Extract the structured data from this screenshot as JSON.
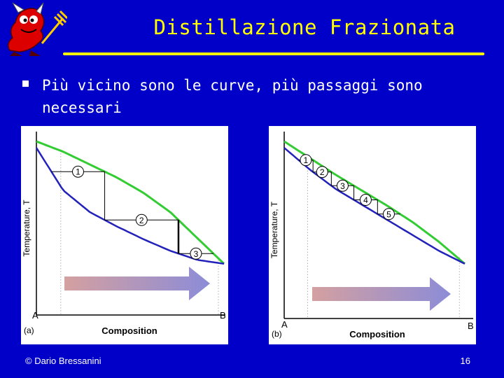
{
  "slide": {
    "title": "Distillazione Frazionata",
    "bullet": "Più vicino sono le curve, più passaggi sono necessari",
    "footer_left": "© Dario Bressanini",
    "page_number": "16"
  },
  "colors": {
    "background": "#0000c8",
    "title": "#ffff00",
    "vapor_curve": "#33cc33",
    "liquid_curve": "#2222bb"
  },
  "chart_data": [
    {
      "type": "line",
      "panel_label": "(a)",
      "ylabel": "Temperature, T",
      "xlabel": "Composition",
      "x_tick_labels": [
        "A",
        "B"
      ],
      "step_labels": [
        "1",
        "2",
        "3"
      ],
      "series": [
        {
          "values": [
            1,
            0.92,
            0.82,
            0.72,
            0.6,
            0.45,
            0.25,
            0.05
          ]
        },
        {
          "values": [
            0.95,
            0.62,
            0.45,
            0.34,
            0.24,
            0.15,
            0.08,
            0.05
          ]
        }
      ],
      "steps": 3
    },
    {
      "type": "line",
      "panel_label": "(b)",
      "ylabel": "Temperature, T",
      "xlabel": "Composition",
      "x_tick_labels": [
        "A",
        "B"
      ],
      "step_labels": [
        "1",
        "2",
        "3",
        "4",
        "5"
      ],
      "series": [
        {
          "values": [
            1,
            0.87,
            0.74,
            0.62,
            0.5,
            0.37,
            0.22,
            0.05
          ]
        },
        {
          "values": [
            0.95,
            0.78,
            0.63,
            0.51,
            0.39,
            0.27,
            0.15,
            0.05
          ]
        }
      ],
      "steps": 5
    }
  ]
}
